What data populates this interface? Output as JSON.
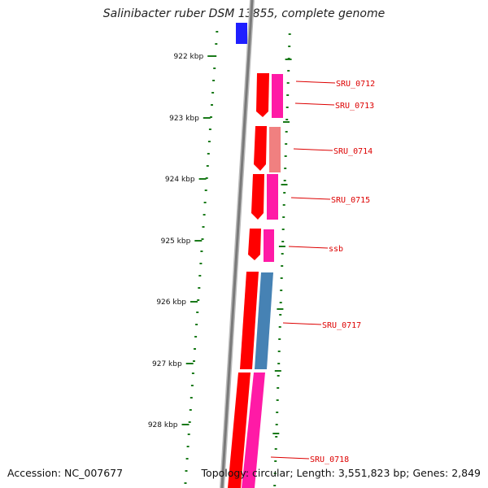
{
  "title": "Salinibacter ruber DSM 13855, complete genome",
  "footer": {
    "accession_label": "Accession:",
    "accession": "NC_007677",
    "topology_label": "Topology:",
    "topology": "circular",
    "length_label": "Length:",
    "length": "3,551,823 bp",
    "genes_label": "Genes:",
    "genes": "2,849"
  },
  "ruler": {
    "unit": "kbp",
    "ticks": [
      922,
      923,
      924,
      925,
      926,
      927,
      928
    ]
  },
  "colors": {
    "backbone": "#888888",
    "tick": "#1a7a1a",
    "label": "#dd0000",
    "forward_gene": "#ff0000",
    "magenta_gene": "#ff1aa6",
    "salmon_gene": "#f08080",
    "steelblue_gene": "#4682b4",
    "blue_gene": "#1f1fff"
  },
  "genes": [
    {
      "locus_tag": "SRU_0712"
    },
    {
      "locus_tag": "SRU_0713"
    },
    {
      "locus_tag": "SRU_0714"
    },
    {
      "locus_tag": "SRU_0715"
    },
    {
      "locus_tag": "ssb"
    },
    {
      "locus_tag": "SRU_0717"
    },
    {
      "locus_tag": "SRU_0718"
    }
  ]
}
